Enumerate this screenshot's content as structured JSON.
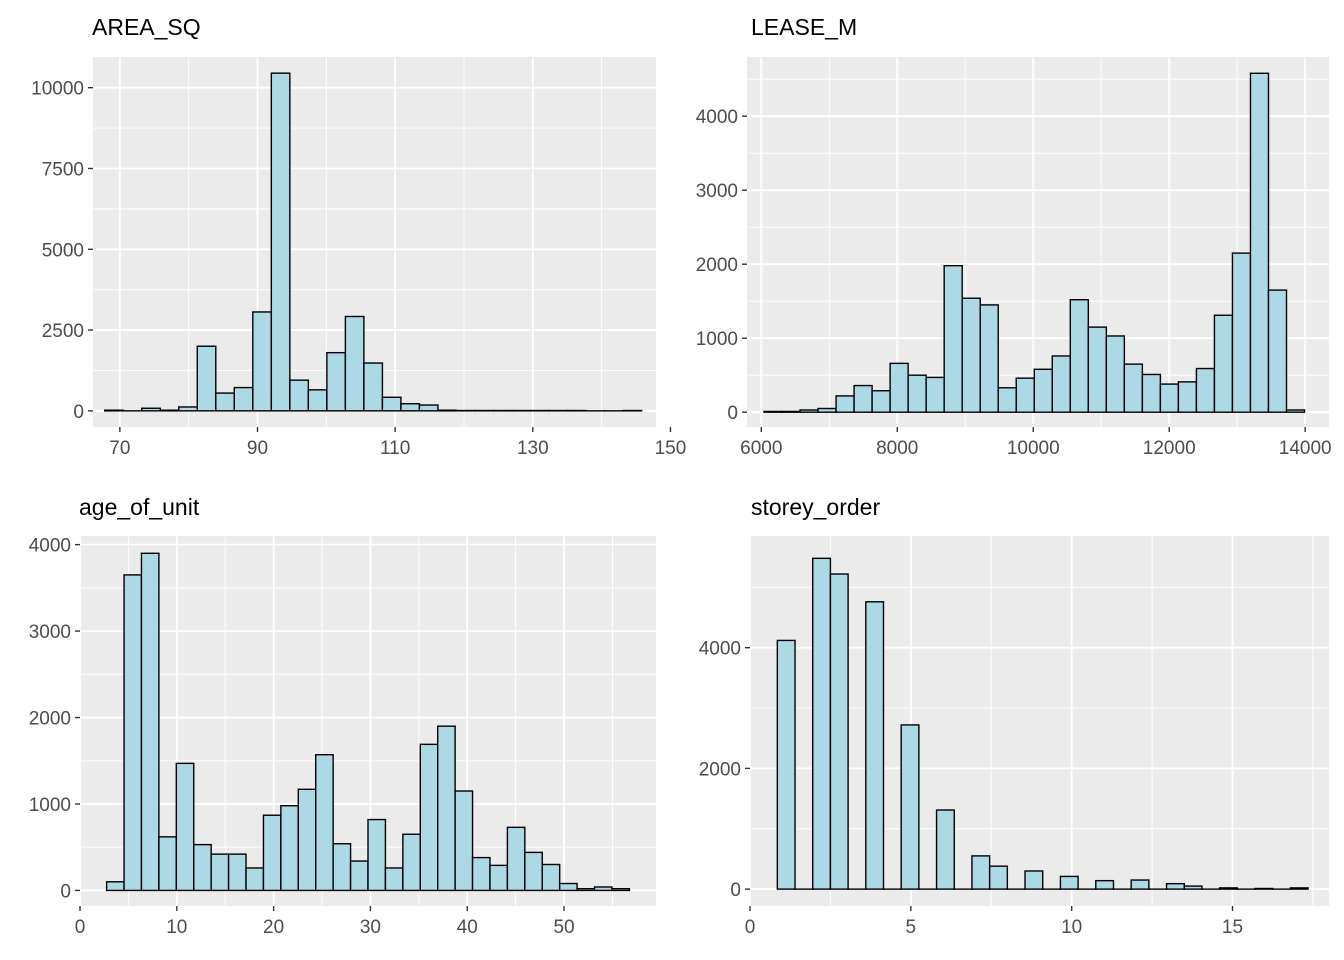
{
  "figure": {
    "background": "#ffffff",
    "panel_background": "#ebebeb",
    "grid_color": "#ffffff",
    "bar_fill": "#add8e6",
    "bar_stroke": "#000000"
  },
  "chart_data": [
    {
      "type": "bar",
      "title": "AREA_SQ",
      "xlabel": "",
      "ylabel": "",
      "xlim": [
        66.1,
        147.9
      ],
      "ylim": [
        -500,
        10950
      ],
      "x_ticks": [
        "70",
        "90",
        "110",
        "130",
        "150"
      ],
      "x_tick_values": [
        70,
        90,
        110,
        130,
        150
      ],
      "y_ticks": [
        "0",
        "2500",
        "5000",
        "7500",
        "10000"
      ],
      "y_tick_values": [
        0,
        2500,
        5000,
        7500,
        10000
      ],
      "grid": true,
      "bin_width": 2.69,
      "bins_start": [
        67.8,
        70.49,
        73.18,
        75.87,
        78.56,
        81.25,
        83.94,
        86.63,
        89.32,
        92.01,
        94.7,
        97.39,
        100.08,
        102.77,
        105.46,
        108.15,
        110.84,
        113.53,
        116.22,
        118.91,
        121.6,
        124.29,
        126.98,
        129.67,
        132.36,
        135.05,
        137.74,
        140.43,
        143.12
      ],
      "values": [
        20,
        0,
        80,
        20,
        120,
        2000,
        550,
        720,
        3060,
        10450,
        950,
        650,
        1800,
        2920,
        1480,
        420,
        220,
        180,
        20,
        10,
        10,
        10,
        10,
        10,
        10,
        10,
        0,
        0,
        10
      ]
    },
    {
      "type": "bar",
      "title": "LEASE_M",
      "xlabel": "",
      "ylabel": "",
      "xlim": [
        5790,
        14350
      ],
      "ylim": [
        -200,
        4800
      ],
      "x_ticks": [
        "6000",
        "8000",
        "10000",
        "12000",
        "14000"
      ],
      "x_tick_values": [
        6000,
        8000,
        10000,
        12000,
        14000
      ],
      "y_ticks": [
        "0",
        "1000",
        "2000",
        "3000",
        "4000"
      ],
      "y_tick_values": [
        0,
        1000,
        2000,
        3000,
        4000
      ],
      "grid": true,
      "bin_width": 265,
      "bins_start": [
        6040,
        6305,
        6570,
        6835,
        7100,
        7365,
        7630,
        7895,
        8160,
        8425,
        8690,
        8955,
        9220,
        9485,
        9750,
        10015,
        10280,
        10545,
        10810,
        11075,
        11340,
        11605,
        11870,
        12135,
        12400,
        12665,
        12930,
        13195,
        13460,
        13725
      ],
      "values": [
        10,
        10,
        30,
        50,
        220,
        360,
        290,
        660,
        500,
        470,
        1980,
        1540,
        1450,
        330,
        460,
        580,
        760,
        1520,
        1150,
        1030,
        650,
        510,
        380,
        410,
        590,
        1310,
        2150,
        4580,
        1650,
        30
      ]
    },
    {
      "type": "bar",
      "title": "age_of_unit",
      "xlabel": "",
      "ylabel": "",
      "xlim": [
        0,
        59.5
      ],
      "ylim": [
        -180,
        4100
      ],
      "x_ticks": [
        "0",
        "10",
        "20",
        "30",
        "40",
        "50"
      ],
      "x_tick_values": [
        0,
        10,
        20,
        30,
        40,
        50
      ],
      "y_ticks": [
        "0",
        "1000",
        "2000",
        "3000",
        "4000"
      ],
      "y_tick_values": [
        0,
        1000,
        2000,
        3000,
        4000
      ],
      "grid": true,
      "bin_width": 1.8,
      "bins_start": [
        2.75,
        4.55,
        6.35,
        8.15,
        9.95,
        11.75,
        13.55,
        15.35,
        17.15,
        18.95,
        20.75,
        22.55,
        24.35,
        26.15,
        27.95,
        29.75,
        31.55,
        33.35,
        35.15,
        36.95,
        38.75,
        40.55,
        42.35,
        44.15,
        45.95,
        47.75,
        49.55,
        51.35,
        53.15,
        54.95
      ],
      "values": [
        100,
        3650,
        3900,
        620,
        1470,
        530,
        420,
        420,
        260,
        870,
        980,
        1170,
        1570,
        540,
        340,
        820,
        260,
        650,
        1690,
        1900,
        1150,
        380,
        290,
        730,
        440,
        300,
        80,
        20,
        40,
        20
      ]
    },
    {
      "type": "bar",
      "title": "storey_order",
      "xlabel": "",
      "ylabel": "",
      "xlim": [
        0,
        18.0
      ],
      "ylim": [
        -280,
        5850
      ],
      "x_ticks": [
        "0",
        "5",
        "10",
        "15"
      ],
      "x_tick_values": [
        0,
        5,
        10,
        15
      ],
      "y_ticks": [
        "0",
        "2000",
        "4000"
      ],
      "y_tick_values": [
        0,
        2000,
        4000
      ],
      "grid": true,
      "bin_width": 0.55,
      "bins_start": [
        0.85,
        1.4,
        1.95,
        2.5,
        3.05,
        3.6,
        4.15,
        4.7,
        5.25,
        5.8,
        6.35,
        6.9,
        7.45,
        8.0,
        8.55,
        9.1,
        9.65,
        10.2,
        10.75,
        11.3,
        11.85,
        12.4,
        12.95,
        13.5,
        14.05,
        14.6,
        15.15,
        15.7,
        16.25,
        16.8
      ],
      "values": [
        4120,
        0,
        5480,
        5220,
        0,
        4760,
        0,
        2720,
        0,
        1310,
        0,
        550,
        380,
        0,
        300,
        0,
        210,
        0,
        140,
        0,
        150,
        0,
        90,
        50,
        0,
        20,
        0,
        10,
        0,
        20
      ]
    }
  ]
}
